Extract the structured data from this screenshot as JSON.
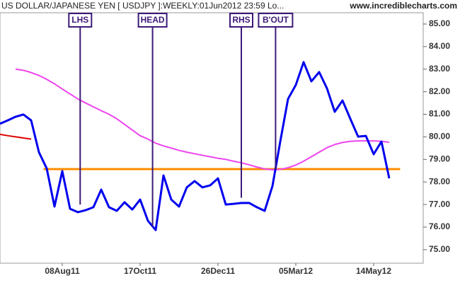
{
  "chart_data": {
    "type": "line",
    "title": "US DOLLAR/JAPANESE YEN [ USDJPY ]:WEEKLY:01Jun2012 23:59 Lo...",
    "subtitle": "www.incrediblecharts.com",
    "categories": [
      null,
      null,
      null,
      null,
      null,
      null,
      null,
      null,
      "08Aug11",
      null,
      null,
      null,
      null,
      null,
      null,
      null,
      null,
      null,
      "17Oct11",
      null,
      null,
      null,
      null,
      null,
      null,
      null,
      null,
      null,
      "26Dec11",
      null,
      null,
      null,
      null,
      null,
      null,
      null,
      null,
      null,
      "05Mar12",
      null,
      null,
      null,
      null,
      null,
      null,
      null,
      null,
      null,
      "14May12",
      null,
      null
    ],
    "series": [
      {
        "color": "#0000ee",
        "values": [
          80.58,
          80.73,
          80.89,
          80.99,
          80.73,
          79.32,
          78.6,
          76.91,
          78.48,
          76.81,
          76.66,
          76.75,
          76.88,
          77.66,
          76.88,
          76.72,
          77.1,
          76.78,
          77.22,
          76.28,
          75.87,
          78.29,
          77.22,
          76.91,
          77.76,
          78.04,
          77.76,
          77.85,
          78.16,
          77.0,
          77.03,
          77.07,
          77.07,
          76.88,
          76.72,
          77.82,
          79.79,
          81.68,
          82.3,
          83.31,
          82.46,
          82.87,
          82.15,
          81.11,
          81.61,
          80.8,
          80.01,
          80.04,
          79.23,
          79.79,
          78.16
        ]
      },
      {
        "color": "#ee44ee",
        "values": [
          null,
          null,
          83.0,
          82.95,
          82.85,
          82.72,
          82.55,
          82.35,
          82.12,
          81.9,
          81.68,
          81.5,
          81.33,
          81.16,
          81.0,
          80.8,
          80.55,
          80.3,
          80.05,
          79.9,
          79.72,
          79.6,
          79.5,
          79.4,
          79.32,
          79.25,
          79.18,
          79.12,
          79.05,
          79.0,
          78.92,
          78.85,
          78.76,
          78.66,
          78.58,
          78.54,
          78.56,
          78.63,
          78.75,
          78.92,
          79.12,
          79.32,
          79.52,
          79.66,
          79.75,
          79.8,
          79.82,
          79.82,
          79.82,
          79.8,
          79.76
        ]
      },
      {
        "color": "#dd0000",
        "values": [
          80.11,
          80.05,
          80.0,
          79.95,
          79.9,
          null,
          null,
          null,
          null,
          null,
          null,
          null,
          null,
          null,
          null,
          null,
          null,
          null,
          null,
          null,
          null,
          null,
          null,
          null,
          null,
          null,
          null,
          null,
          null,
          null,
          null,
          null,
          null,
          null,
          null,
          null,
          null,
          null,
          null,
          null,
          null,
          null,
          null,
          null,
          null,
          null,
          null,
          null,
          null,
          null,
          null
        ]
      }
    ],
    "hline": {
      "value": 78.57,
      "color": "#ff8c00",
      "start": 5.6,
      "end": 51.4
    },
    "annotations": [
      {
        "label": "LHS",
        "x": 10.3,
        "y": 77.0
      },
      {
        "label": "HEAD",
        "x": 19.6,
        "y": 76.03
      },
      {
        "label": "RHS",
        "x": 31,
        "y": 77.3
      },
      {
        "label": "B'OUT",
        "x": 35.4,
        "y": 78.54
      }
    ],
    "ylim": [
      74.4,
      85.5
    ],
    "yticks": [
      {
        "value": 75,
        "label": "75.00"
      },
      {
        "value": 76,
        "label": "76.00"
      },
      {
        "value": 77,
        "label": "77.00"
      },
      {
        "value": 78,
        "label": "78.00"
      },
      {
        "value": 79,
        "label": "79.00"
      },
      {
        "value": 80,
        "label": "80.00"
      },
      {
        "value": 81,
        "label": "81.00"
      },
      {
        "value": 82,
        "label": "82.00"
      },
      {
        "value": 83,
        "label": "83.00"
      },
      {
        "value": 84,
        "label": "84.00"
      },
      {
        "value": 85,
        "label": "85.00"
      }
    ]
  }
}
